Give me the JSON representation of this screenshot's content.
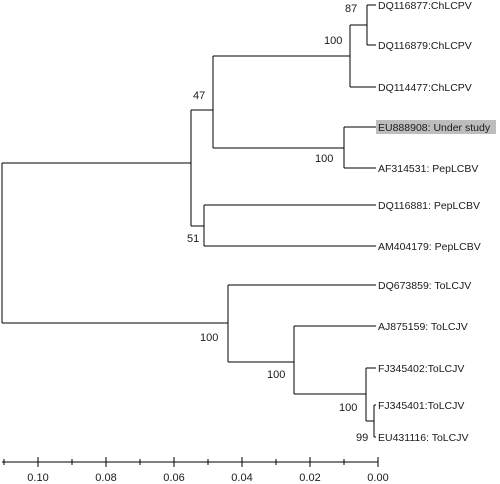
{
  "tree": {
    "leaves": [
      {
        "id": "l1",
        "label": "DQ116877:ChLCPV"
      },
      {
        "id": "l2",
        "label": "DQ116879:ChLCPV"
      },
      {
        "id": "l3",
        "label": "DQ114477:ChLCPV"
      },
      {
        "id": "l4",
        "label": "EU888908: Under study",
        "highlighted": true
      },
      {
        "id": "l5",
        "label": "AF314531: PepLCBV"
      },
      {
        "id": "l6",
        "label": "DQ116881: PepLCBV"
      },
      {
        "id": "l7",
        "label": "AM404179: PepLCBV"
      },
      {
        "id": "l8",
        "label": "DQ673859: ToLCJV"
      },
      {
        "id": "l9",
        "label": "AJ875159: ToLCJV"
      },
      {
        "id": "l10",
        "label": "FJ345402:ToLCJV"
      },
      {
        "id": "l11",
        "label": "FJ345401:ToLCJV"
      },
      {
        "id": "l12",
        "label": "EU431116: ToLCJV"
      }
    ],
    "support_values": {
      "n_l1l2": "87",
      "n_chlcpv": "100",
      "n_top": "47",
      "n_under": "100",
      "n_pep": "51",
      "n_tol": "100",
      "n_tol2": "100",
      "n_tol3": "100",
      "n_tol4": "99"
    }
  },
  "axis": {
    "ticks": [
      "0.10",
      "0.08",
      "0.06",
      "0.04",
      "0.02",
      "0.00"
    ]
  }
}
